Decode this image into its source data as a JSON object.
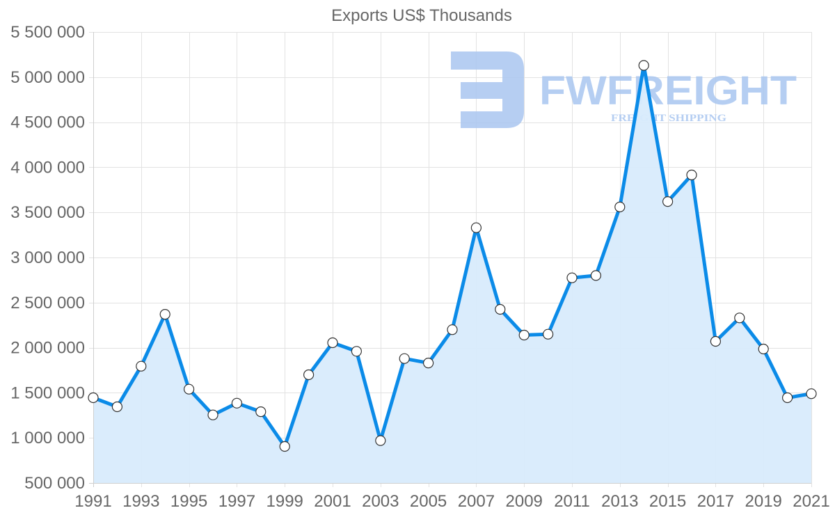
{
  "chart_data": {
    "type": "line",
    "title": "Exports US$ Thousands",
    "xlabel": "",
    "ylabel": "",
    "x": [
      1991,
      1992,
      1993,
      1994,
      1995,
      1996,
      1997,
      1998,
      1999,
      2000,
      2001,
      2002,
      2003,
      2004,
      2005,
      2006,
      2007,
      2008,
      2009,
      2010,
      2011,
      2012,
      2013,
      2014,
      2015,
      2016,
      2017,
      2018,
      2019,
      2020,
      2021
    ],
    "series": [
      {
        "name": "Exports US$ Thousands",
        "values": [
          1445000,
          1345000,
          1795000,
          2370000,
          1540000,
          1255000,
          1385000,
          1290000,
          905000,
          1700000,
          2055000,
          1960000,
          970000,
          1880000,
          1830000,
          2200000,
          3330000,
          2425000,
          2140000,
          2150000,
          2775000,
          2800000,
          3560000,
          5130000,
          3620000,
          3915000,
          2070000,
          2330000,
          1985000,
          1445000,
          1490000
        ],
        "color": "#0b8be8",
        "fill": "#d8ebfc",
        "point_fill": "#ffffff",
        "point_stroke": "#333333"
      }
    ],
    "xticks": [
      "1991",
      "1993",
      "1995",
      "1997",
      "1999",
      "2001",
      "2003",
      "2005",
      "2007",
      "2009",
      "2011",
      "2013",
      "2015",
      "2017",
      "2019",
      "2021"
    ],
    "yticks": [
      "500 000",
      "1 000 000",
      "1 500 000",
      "2 000 000",
      "2 500 000",
      "3 000 000",
      "3 500 000",
      "4 000 000",
      "4 500 000",
      "5 000 000",
      "5 500 000"
    ],
    "ylim": [
      500000,
      5500000
    ],
    "xlim": [
      1991,
      2021
    ],
    "grid": true,
    "legend": "none",
    "area_fill": true
  },
  "watermark": {
    "brand": "FWFREIGHT",
    "tagline": "FREIGHT SHIPPING",
    "color": "#a9c6f0"
  }
}
